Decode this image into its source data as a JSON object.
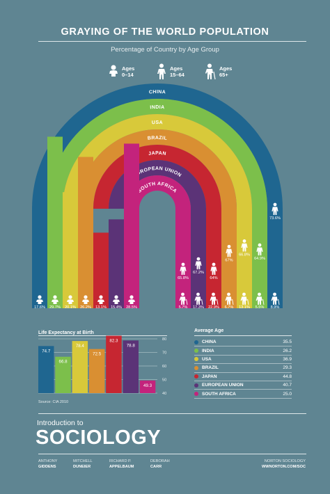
{
  "header": {
    "title": "GRAYING OF THE WORLD POPULATION",
    "subtitle": "Percentage of Country by Age Group"
  },
  "age_legend": [
    {
      "line1": "Ages",
      "line2": "0–14",
      "icon": "baby-icon"
    },
    {
      "line1": "Ages",
      "line2": "15–64",
      "icon": "adult-icon"
    },
    {
      "line1": "Ages",
      "line2": "65+",
      "icon": "elder-icon"
    }
  ],
  "chart_data": [
    {
      "type": "arch-bar",
      "categories": [
        "China",
        "India",
        "USA",
        "Brazil",
        "Japan",
        "European Union",
        "South Africa"
      ],
      "arc_labels": [
        "CHINA",
        "INDIA",
        "USA",
        "BRAZIL",
        "JAPAN",
        "EUROPEAN UNION",
        "SOUTH AFRICA"
      ],
      "colors": [
        "#1f6690",
        "#7cbf4b",
        "#d8c93a",
        "#d98f32",
        "#c62631",
        "#5b3377",
        "#c3237c"
      ],
      "series": [
        {
          "name": "Ages 0–14",
          "values": [
            17.6,
            29.7,
            20.1,
            26.2,
            13.1,
            15.4,
            28.5
          ],
          "labels": [
            "17.6%",
            "29.7%",
            "20.1%",
            "26.2%",
            "13.1%",
            "15.4%",
            "28.5%"
          ]
        },
        {
          "name": "Ages 15–64",
          "values": [
            73.6,
            64.9,
            66.8,
            67.0,
            64.0,
            67.2,
            65.8
          ],
          "labels": [
            "73.6%",
            "64.9%",
            "66.8%",
            "67%",
            "64%",
            "67.2%",
            "65.8%"
          ]
        },
        {
          "name": "Ages 65+",
          "values": [
            8.9,
            5.5,
            13.1,
            6.7,
            22.9,
            17.3,
            5.7
          ],
          "labels": [
            "8.9%",
            "5.5%",
            "13.1%",
            "6.7%",
            "22.9%",
            "17.3%",
            "5.7%"
          ]
        }
      ]
    },
    {
      "type": "bar",
      "title": "Life Expectancy at Birth",
      "categories": [
        "China",
        "India",
        "USA",
        "Brazil",
        "Japan",
        "European Union",
        "South Africa"
      ],
      "values": [
        74.7,
        66.8,
        78.4,
        72.5,
        82.3,
        78.8,
        49.3
      ],
      "labels": [
        "74.7",
        "66.8",
        "78.4",
        "72.5",
        "82.3",
        "78.8",
        "49.3"
      ],
      "ylim": [
        40,
        80
      ],
      "yticks": [
        "40",
        "50",
        "60",
        "70",
        "80"
      ],
      "source": "Source: CIA 2010"
    },
    {
      "type": "table",
      "title": "Average Age",
      "rows": [
        {
          "name": "CHINA",
          "value": "35.5",
          "color": "#1f6690"
        },
        {
          "name": "INDIA",
          "value": "26.2",
          "color": "#7cbf4b"
        },
        {
          "name": "USA",
          "value": "36.9",
          "color": "#d8c93a"
        },
        {
          "name": "BRAZIL",
          "value": "29.3",
          "color": "#d98f32"
        },
        {
          "name": "JAPAN",
          "value": "44.8",
          "color": "#c62631"
        },
        {
          "name": "EUROPEAN UNION",
          "value": "40.7",
          "color": "#5b3377"
        },
        {
          "name": "SOUTH AFRICA",
          "value": "25.0",
          "color": "#c3237c"
        }
      ]
    }
  ],
  "footer": {
    "intro": "Introduction to",
    "brand": "SOCIOLOGY",
    "authors": [
      {
        "first": "ANTHONY",
        "last": "GIDDENS"
      },
      {
        "first": "MITCHELL",
        "last": "DUNEIER"
      },
      {
        "first": "RICHARD P.",
        "last": "APPELBAUM"
      },
      {
        "first": "DEBORAH",
        "last": "CARR"
      }
    ],
    "publisher": "NORTON SOCIOLOGY",
    "url": "WWNORTON.COM/SOC"
  }
}
